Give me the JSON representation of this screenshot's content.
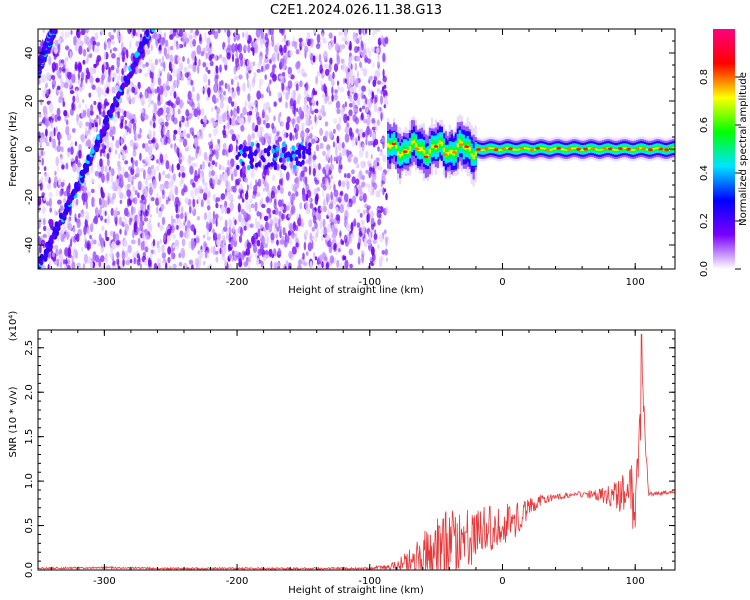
{
  "title": "C2E1.2024.026.11.38.G13",
  "chart_data": [
    {
      "type": "heatmap",
      "xlabel": "Height of straight line (km)",
      "ylabel": "Frequency (Hz)",
      "xlim": [
        -350,
        130
      ],
      "ylim": [
        -50,
        50
      ],
      "x_ticks": [
        -300,
        -200,
        -100,
        0,
        100
      ],
      "y_ticks": [
        -40,
        -20,
        0,
        20,
        40
      ],
      "colorbar": {
        "label": "Normalized spectral amplitude",
        "range": [
          0,
          1
        ],
        "ticks": [
          "0.0",
          "0.2",
          "0.4",
          "0.6",
          "0.8"
        ],
        "colormap": [
          "#ffffff",
          "#7a00ff",
          "#0000ff",
          "#00e5ff",
          "#00ff00",
          "#ffff00",
          "#ff0000",
          "#ff0080"
        ]
      },
      "features": {
        "noise_region_x": [
          -350,
          -87
        ],
        "noise_color": "#8a2be2",
        "diagonal_tracks": [
          {
            "x_start": -350,
            "y_start": -50,
            "x_end": -265,
            "y_end": 50
          },
          {
            "x_start": -352,
            "y_start": 30,
            "x_end": -338,
            "y_end": 50
          }
        ],
        "noise_blob": {
          "x_range": [
            -200,
            -145
          ],
          "y_center": -3
        },
        "signal_line_x": [
          -87,
          130
        ],
        "signal_line_y": 0,
        "signal_colors": [
          "#0000ff",
          "#00e5ff",
          "#00ff00",
          "#ffff00",
          "#ff0000"
        ]
      }
    },
    {
      "type": "line",
      "xlabel": "Height of straight line (km)",
      "ylabel": "SNR (10 * v/v)",
      "y_multiplier_label": "(x10⁴)",
      "xlim": [
        -350,
        130
      ],
      "ylim": [
        0,
        2.7
      ],
      "x_ticks": [
        -300,
        -200,
        -100,
        0,
        100
      ],
      "y_ticks": [
        "0.0",
        "0.5",
        "1.0",
        "1.5",
        "2.0",
        "2.5"
      ],
      "series": [
        {
          "color": "#e8383a",
          "x": [
            -350,
            -300,
            -250,
            -200,
            -150,
            -100,
            -80,
            -70,
            -60,
            -50,
            -40,
            -30,
            -20,
            -10,
            0,
            10,
            20,
            30,
            40,
            50,
            60,
            70,
            80,
            90,
            100,
            105,
            110,
            120,
            130
          ],
          "y": [
            0.02,
            0.03,
            0.02,
            0.02,
            0.02,
            0.02,
            0.05,
            0.12,
            0.22,
            0.3,
            0.38,
            0.42,
            0.45,
            0.5,
            0.55,
            0.62,
            0.72,
            0.8,
            0.83,
            0.85,
            0.86,
            0.86,
            0.86,
            0.88,
            0.9,
            2.6,
            0.86,
            0.87,
            0.88
          ],
          "noise_amplitude": [
            0.01,
            0.01,
            0.01,
            0.01,
            0.01,
            0.01,
            0.05,
            0.15,
            0.25,
            0.4,
            0.35,
            0.3,
            0.3,
            0.25,
            0.2,
            0.2,
            0.1,
            0.05,
            0.03,
            0.03,
            0.03,
            0.05,
            0.1,
            0.2,
            0.4,
            0.3,
            0.02,
            0.02,
            0.02
          ]
        }
      ]
    }
  ]
}
